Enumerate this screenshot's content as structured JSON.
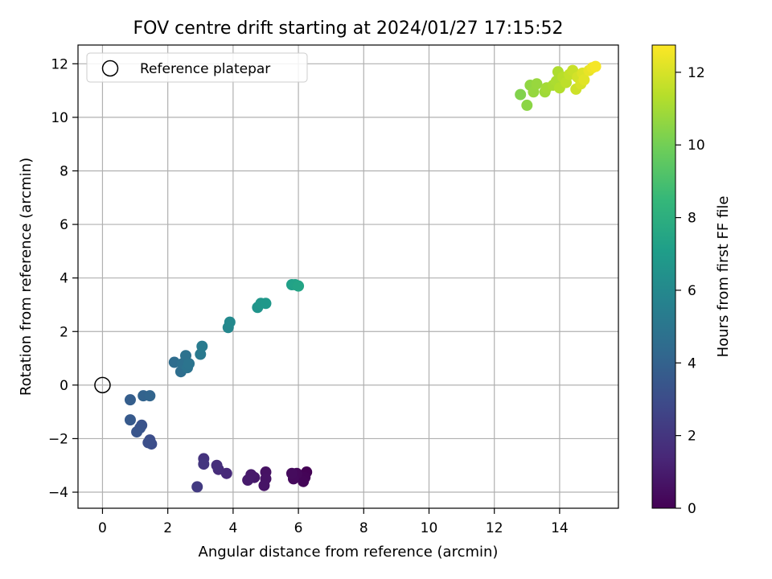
{
  "chart_data": {
    "type": "scatter",
    "title": "FOV centre drift starting at 2024/01/27 17:15:52",
    "xlabel": "Angular distance from reference (arcmin)",
    "ylabel": "Rotation from reference (arcmin)",
    "xlim": [
      -0.75,
      15.8
    ],
    "ylim": [
      -4.6,
      12.7
    ],
    "x_ticks": [
      "0",
      "2",
      "4",
      "6",
      "8",
      "10",
      "12",
      "14"
    ],
    "y_ticks": [
      "−4",
      "−2",
      "0",
      "2",
      "4",
      "6",
      "8",
      "10",
      "12"
    ],
    "grid": true,
    "legend": {
      "position": "top-left",
      "entries": [
        "Reference platepar"
      ]
    },
    "reference_point": {
      "x": 0,
      "y": 0
    },
    "colorbar": {
      "label": "Hours from first FF file",
      "range": [
        0,
        12.75
      ],
      "ticks": [
        "0",
        "2",
        "4",
        "6",
        "8",
        "10",
        "12"
      ],
      "colormap": "viridis"
    },
    "points": [
      {
        "x": 6.25,
        "y": -3.25,
        "t": 0.05
      },
      {
        "x": 6.2,
        "y": -3.45,
        "t": 0.1
      },
      {
        "x": 6.15,
        "y": -3.6,
        "t": 0.15
      },
      {
        "x": 5.95,
        "y": -3.3,
        "t": 0.25
      },
      {
        "x": 5.85,
        "y": -3.5,
        "t": 0.3
      },
      {
        "x": 5.8,
        "y": -3.3,
        "t": 0.35
      },
      {
        "x": 5.0,
        "y": -3.25,
        "t": 0.6
      },
      {
        "x": 5.0,
        "y": -3.5,
        "t": 0.65
      },
      {
        "x": 4.95,
        "y": -3.75,
        "t": 0.7
      },
      {
        "x": 4.65,
        "y": -3.45,
        "t": 0.85
      },
      {
        "x": 4.55,
        "y": -3.35,
        "t": 0.9
      },
      {
        "x": 4.45,
        "y": -3.55,
        "t": 0.95
      },
      {
        "x": 3.8,
        "y": -3.3,
        "t": 1.5
      },
      {
        "x": 3.55,
        "y": -3.15,
        "t": 1.6
      },
      {
        "x": 3.5,
        "y": -3.0,
        "t": 1.7
      },
      {
        "x": 3.1,
        "y": -2.75,
        "t": 1.9
      },
      {
        "x": 3.1,
        "y": -2.95,
        "t": 2.0
      },
      {
        "x": 2.9,
        "y": -3.8,
        "t": 2.2
      },
      {
        "x": 1.5,
        "y": -2.2,
        "t": 3.0
      },
      {
        "x": 1.45,
        "y": -2.05,
        "t": 3.05
      },
      {
        "x": 1.4,
        "y": -2.15,
        "t": 3.1
      },
      {
        "x": 1.2,
        "y": -1.5,
        "t": 3.3
      },
      {
        "x": 1.15,
        "y": -1.6,
        "t": 3.35
      },
      {
        "x": 1.05,
        "y": -1.75,
        "t": 3.4
      },
      {
        "x": 0.85,
        "y": -1.3,
        "t": 3.6
      },
      {
        "x": 0.85,
        "y": -0.55,
        "t": 3.8
      },
      {
        "x": 1.25,
        "y": -0.4,
        "t": 4.0
      },
      {
        "x": 1.45,
        "y": -0.4,
        "t": 4.1
      },
      {
        "x": 2.2,
        "y": 0.85,
        "t": 4.5
      },
      {
        "x": 2.4,
        "y": 0.5,
        "t": 4.6
      },
      {
        "x": 2.45,
        "y": 0.8,
        "t": 4.7
      },
      {
        "x": 2.55,
        "y": 1.1,
        "t": 4.8
      },
      {
        "x": 2.6,
        "y": 0.65,
        "t": 4.85
      },
      {
        "x": 2.65,
        "y": 0.8,
        "t": 4.9
      },
      {
        "x": 3.0,
        "y": 1.15,
        "t": 5.2
      },
      {
        "x": 3.05,
        "y": 1.45,
        "t": 5.3
      },
      {
        "x": 3.85,
        "y": 2.15,
        "t": 5.9
      },
      {
        "x": 3.9,
        "y": 2.35,
        "t": 6.0
      },
      {
        "x": 4.75,
        "y": 2.9,
        "t": 6.6
      },
      {
        "x": 4.85,
        "y": 3.05,
        "t": 6.7
      },
      {
        "x": 5.0,
        "y": 3.05,
        "t": 6.8
      },
      {
        "x": 5.8,
        "y": 3.75,
        "t": 7.2
      },
      {
        "x": 5.9,
        "y": 3.75,
        "t": 7.3
      },
      {
        "x": 6.0,
        "y": 3.7,
        "t": 7.4
      },
      {
        "x": 12.8,
        "y": 10.85,
        "t": 10.3
      },
      {
        "x": 13.0,
        "y": 10.45,
        "t": 10.5
      },
      {
        "x": 13.1,
        "y": 11.2,
        "t": 10.6
      },
      {
        "x": 13.2,
        "y": 10.95,
        "t": 10.7
      },
      {
        "x": 13.3,
        "y": 11.25,
        "t": 10.75
      },
      {
        "x": 13.55,
        "y": 10.95,
        "t": 10.9
      },
      {
        "x": 13.6,
        "y": 11.1,
        "t": 11.0
      },
      {
        "x": 13.8,
        "y": 11.2,
        "t": 11.1
      },
      {
        "x": 13.9,
        "y": 11.35,
        "t": 11.15
      },
      {
        "x": 13.95,
        "y": 11.7,
        "t": 11.2
      },
      {
        "x": 14.0,
        "y": 11.1,
        "t": 11.3
      },
      {
        "x": 14.1,
        "y": 11.5,
        "t": 11.4
      },
      {
        "x": 14.2,
        "y": 11.3,
        "t": 11.5
      },
      {
        "x": 14.3,
        "y": 11.6,
        "t": 11.6
      },
      {
        "x": 14.4,
        "y": 11.75,
        "t": 11.7
      },
      {
        "x": 14.5,
        "y": 11.05,
        "t": 11.8
      },
      {
        "x": 14.55,
        "y": 11.5,
        "t": 11.9
      },
      {
        "x": 14.65,
        "y": 11.25,
        "t": 12.0
      },
      {
        "x": 14.7,
        "y": 11.65,
        "t": 12.1
      },
      {
        "x": 14.75,
        "y": 11.4,
        "t": 12.2
      },
      {
        "x": 14.9,
        "y": 11.75,
        "t": 12.35
      },
      {
        "x": 15.0,
        "y": 11.85,
        "t": 12.5
      },
      {
        "x": 15.1,
        "y": 11.9,
        "t": 12.6
      }
    ]
  }
}
